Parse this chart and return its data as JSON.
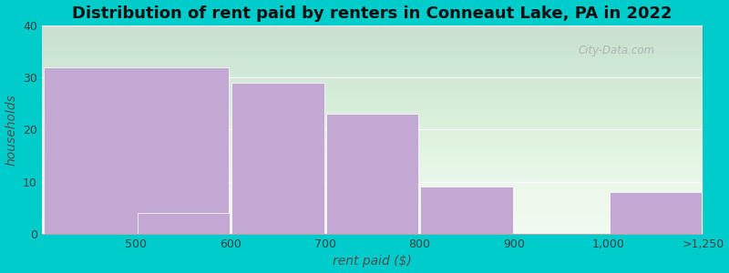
{
  "title": "Distribution of rent paid by renters in Conneaut Lake, PA in 2022",
  "xlabel": "rent paid ($)",
  "ylabel": "households",
  "bar_lefts": [
    0,
    1,
    2,
    3,
    4,
    5,
    6
  ],
  "bar_widths": [
    2,
    1,
    1,
    1,
    1,
    1,
    1
  ],
  "values": [
    32,
    4,
    29,
    23,
    9,
    0,
    8
  ],
  "xtick_positions": [
    1,
    2,
    3,
    4,
    5,
    6,
    7
  ],
  "xtick_labels": [
    "500",
    "600",
    "700",
    "800",
    "900",
    "1,000",
    ">1,250"
  ],
  "bar_color": "#C4A8D4",
  "bar_edgecolor": "#FFFFFF",
  "ylim": [
    0,
    40
  ],
  "yticks": [
    0,
    10,
    20,
    30,
    40
  ],
  "background_outer": "#00CCCC",
  "background_inner_top": "#F0FAF0",
  "background_inner_bottom": "#E0F0E0",
  "title_fontsize": 13,
  "axis_label_fontsize": 10,
  "tick_fontsize": 9,
  "watermark": "City-Data.com"
}
